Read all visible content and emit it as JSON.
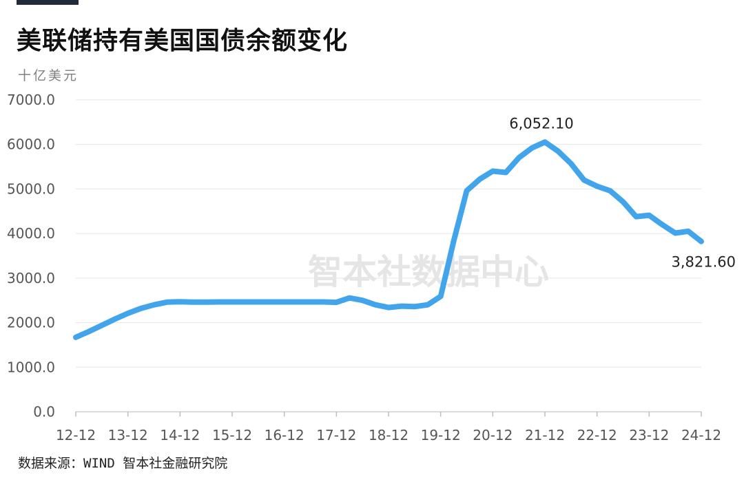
{
  "header": {
    "title": "美联储持有美国国债余额变化",
    "unit": "十亿美元"
  },
  "footer": {
    "source": "数据来源：WIND 智本社金融研究院"
  },
  "watermark": "智本社数据中心",
  "colors": {
    "line": "#42a5ec",
    "grid": "#e6e6e6",
    "accent_bar": "#1f2a3a"
  },
  "chart_data": {
    "type": "line",
    "title": "美联储持有美国国债余额变化",
    "ylabel": "十亿美元",
    "ylim": [
      0,
      7000
    ],
    "y_ticks": [
      "0.0",
      "1000.0",
      "2000.0",
      "3000.0",
      "4000.0",
      "5000.0",
      "6000.0",
      "7000.0"
    ],
    "x_ticks": [
      "12-12",
      "13-12",
      "14-12",
      "15-12",
      "16-12",
      "17-12",
      "18-12",
      "19-12",
      "20-12",
      "21-12",
      "22-12",
      "23-12",
      "24-12"
    ],
    "series": [
      {
        "x": [
          "12-12",
          "13-03",
          "13-06",
          "13-09",
          "13-12",
          "14-03",
          "14-06",
          "14-09",
          "14-12",
          "15-03",
          "15-06",
          "15-09",
          "15-12",
          "16-03",
          "16-06",
          "16-09",
          "16-12",
          "17-03",
          "17-06",
          "17-09",
          "17-12",
          "18-03",
          "18-06",
          "18-09",
          "18-12",
          "19-03",
          "19-06",
          "19-09",
          "19-12",
          "20-03",
          "20-06",
          "20-09",
          "20-12",
          "21-03",
          "21-06",
          "21-09",
          "21-12",
          "22-03",
          "22-06",
          "22-09",
          "22-12",
          "23-03",
          "23-06",
          "23-09",
          "23-12",
          "24-03",
          "24-06",
          "24-09",
          "24-12"
        ],
        "values": [
          1670,
          1800,
          1940,
          2080,
          2210,
          2320,
          2400,
          2460,
          2470,
          2460,
          2460,
          2465,
          2465,
          2465,
          2465,
          2465,
          2465,
          2465,
          2465,
          2465,
          2455,
          2555,
          2500,
          2400,
          2340,
          2370,
          2360,
          2400,
          2590,
          3830,
          4960,
          5220,
          5400,
          5370,
          5700,
          5920,
          6052.1,
          5850,
          5570,
          5200,
          5060,
          4960,
          4710,
          4380,
          4410,
          4200,
          4010,
          4050,
          3821.6
        ]
      }
    ],
    "annotations": [
      {
        "text": "6,052.10",
        "x": "21-12",
        "value": 6052.1,
        "position": "above"
      },
      {
        "text": "3,821.60",
        "x": "24-12",
        "value": 3821.6,
        "position": "below"
      }
    ]
  }
}
